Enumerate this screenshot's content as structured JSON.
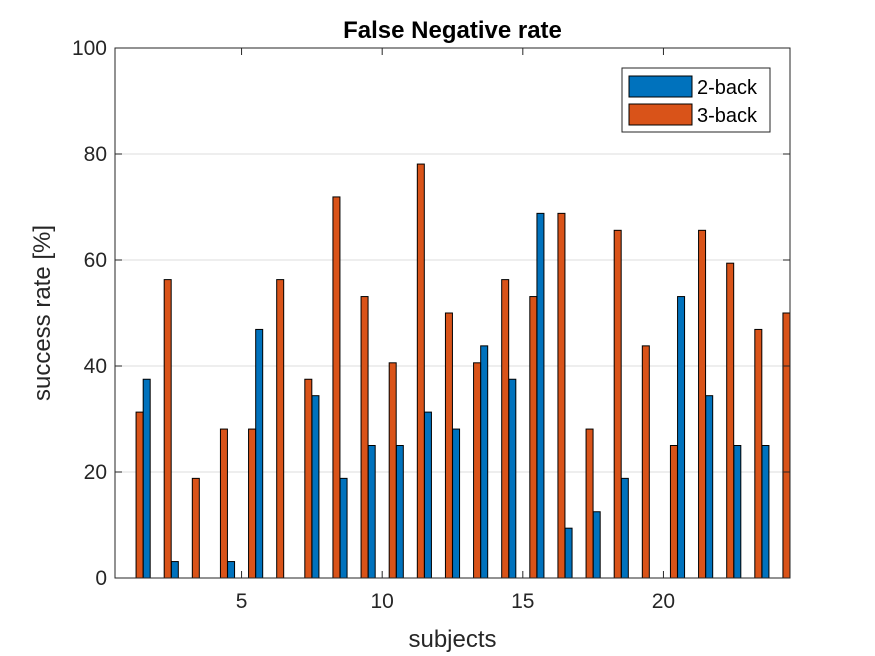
{
  "chart_data": {
    "type": "bar",
    "title": "False Negative rate",
    "xlabel": "subjects",
    "ylabel": "success rate [%]",
    "xlim": [
      0.5,
      24.5
    ],
    "ylim": [
      0,
      100
    ],
    "xticks": [
      5,
      10,
      15,
      20
    ],
    "yticks": [
      0,
      20,
      40,
      60,
      80,
      100
    ],
    "grid": "horizontal",
    "legend_position": "top-right",
    "categories": [
      1,
      2,
      3,
      4,
      5,
      6,
      7,
      8,
      9,
      10,
      11,
      12,
      13,
      14,
      15,
      16,
      17,
      18,
      19,
      20,
      21,
      22,
      23,
      24
    ],
    "series": [
      {
        "name": "2-back",
        "color": "#0072BD",
        "values": [
          0,
          37.5,
          3.1,
          0,
          3.1,
          46.9,
          0,
          34.4,
          18.8,
          25.0,
          25.0,
          31.3,
          28.1,
          43.8,
          37.5,
          68.8,
          9.4,
          12.5,
          18.8,
          0,
          53.1,
          34.4,
          25.0,
          25.0
        ]
      },
      {
        "name": "3-back",
        "color": "#D95319",
        "values": [
          31.3,
          56.3,
          18.8,
          28.1,
          28.1,
          56.3,
          37.5,
          71.9,
          53.1,
          40.6,
          78.1,
          50.0,
          40.6,
          56.3,
          53.1,
          68.8,
          28.1,
          65.6,
          43.8,
          25.0,
          65.6,
          59.4,
          46.9,
          50.0
        ]
      }
    ]
  }
}
